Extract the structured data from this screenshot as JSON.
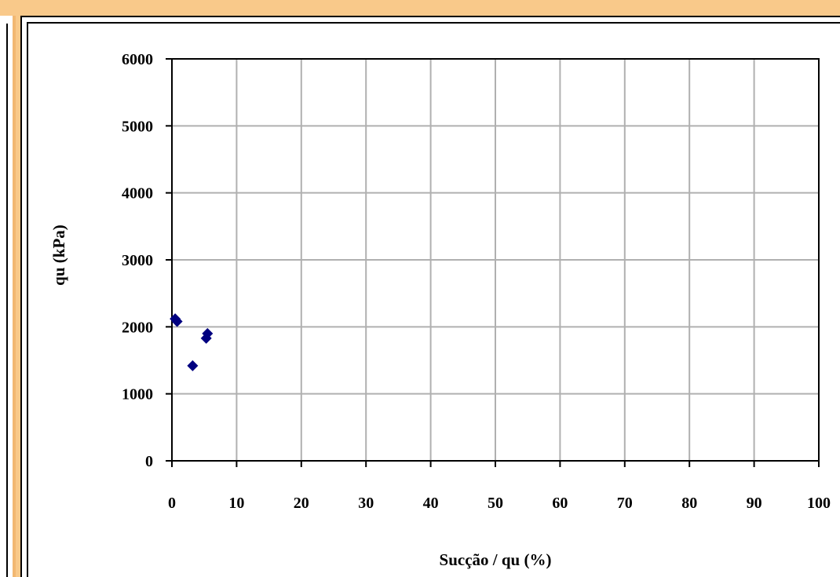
{
  "chart_data": {
    "type": "scatter",
    "title": "",
    "xlabel": "Sucção / qu (%)",
    "ylabel": "qu (kPa)",
    "xlim": [
      0,
      100
    ],
    "ylim": [
      0,
      6000
    ],
    "x_ticks": [
      0,
      10,
      20,
      30,
      40,
      50,
      60,
      70,
      80,
      90,
      100
    ],
    "y_ticks": [
      0,
      1000,
      2000,
      3000,
      4000,
      5000,
      6000
    ],
    "grid": true,
    "marker_color": "#000080",
    "series": [
      {
        "points": [
          {
            "x": 0.5,
            "y": 2120
          },
          {
            "x": 0.8,
            "y": 2080
          },
          {
            "x": 3.2,
            "y": 1420
          },
          {
            "x": 5.3,
            "y": 1830
          },
          {
            "x": 5.5,
            "y": 1900
          }
        ]
      }
    ]
  }
}
